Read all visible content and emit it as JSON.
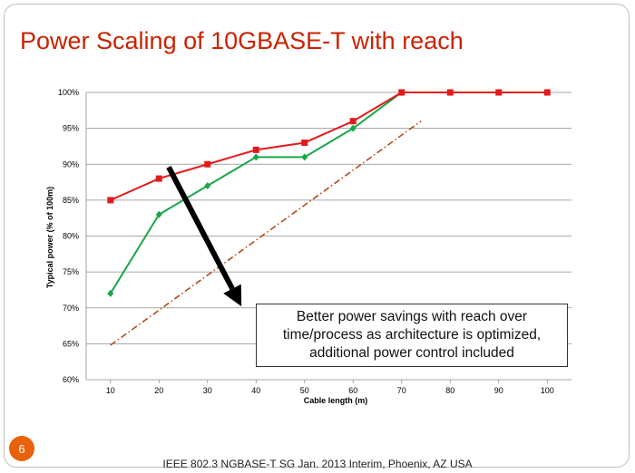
{
  "slide": {
    "title": "Power Scaling of 10GBASE-T with reach",
    "page_number": "6",
    "footer": "IEEE 802.3 NGBASE-T SG Jan. 2013 Interim, Phoenix, AZ USA",
    "callout": "Better power savings with reach over time/process as architecture is optimized, additional power control included"
  },
  "colors": {
    "title": "#cc2200",
    "series_red": "#e31a1c",
    "series_green": "#1aa64a",
    "trend": "#b8481c",
    "badge": "#e8620c"
  },
  "chart_data": {
    "type": "line",
    "xlabel": "Cable length (m)",
    "ylabel": "Typical power  (% of 100m)",
    "x": [
      10,
      20,
      30,
      40,
      50,
      60,
      70,
      80,
      90,
      100
    ],
    "x_ticks": [
      "10",
      "20",
      "30",
      "40",
      "50",
      "60",
      "70",
      "80",
      "90",
      "100"
    ],
    "ylim": [
      60,
      100
    ],
    "y_ticks": [
      "60%",
      "65%",
      "70%",
      "75%",
      "80%",
      "85%",
      "90%",
      "95%",
      "100%"
    ],
    "grid": "horizontal",
    "series": [
      {
        "key": "red",
        "values": [
          85,
          88,
          90,
          92,
          93,
          96,
          100,
          100,
          100,
          100
        ],
        "marker": "square",
        "color": "#e31a1c"
      },
      {
        "key": "green",
        "values": [
          72,
          83,
          87,
          91,
          91,
          95,
          100,
          100,
          null,
          null
        ],
        "marker": "diamond",
        "color": "#1aa64a"
      }
    ],
    "trend_line": {
      "x": [
        10,
        74
      ],
      "y": [
        64.8,
        96
      ],
      "style": "dash-dot",
      "color": "#b8481c"
    },
    "arrow": {
      "from": {
        "x": 22,
        "y": 89.6
      },
      "to": {
        "x": 37,
        "y": 70.2
      },
      "color": "#000000"
    }
  }
}
